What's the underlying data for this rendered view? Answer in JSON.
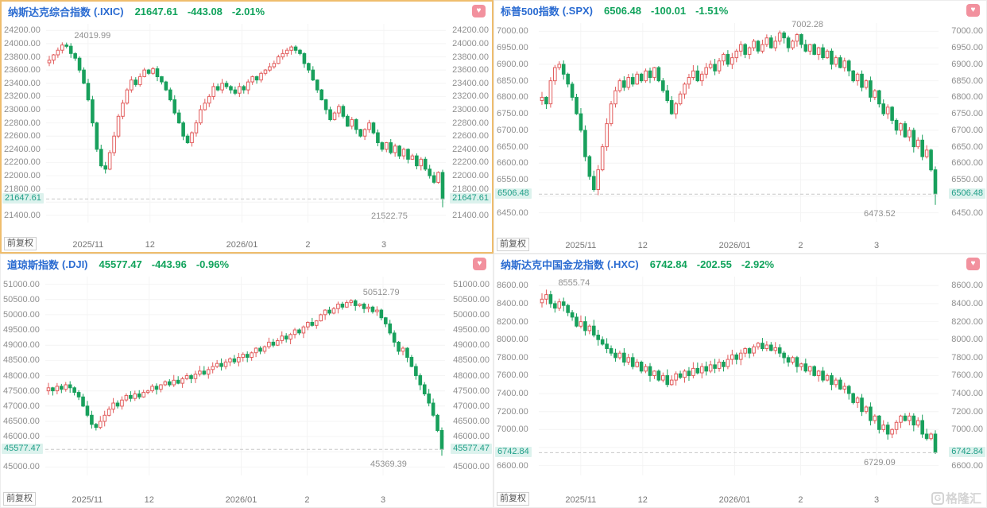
{
  "page": {
    "adjust_label": "前复权",
    "watermark_g": "G",
    "watermark_text": "格隆汇",
    "heart": "♥"
  },
  "colors": {
    "up": "#e25c5c",
    "down": "#18a05c",
    "name_blue": "#2a6bd1",
    "value_green": "#11a35c",
    "current_bg": "#dcf2ed",
    "current_text": "#1f9e87",
    "active_border": "#efbd6d",
    "grid": "#f4f4f4",
    "dashed": "#c8c8c8",
    "favorite": "#f2919e"
  },
  "chart_data": [
    {
      "type": "candlestick",
      "name": "纳斯达克综合指数",
      "code": "(.IXIC)",
      "last": "21647.61",
      "change": "-443.08",
      "change_pct": "-2.01%",
      "current": 21647.61,
      "high_annotation": 24019.99,
      "low_annotation": 21522.75,
      "y_ticks": [
        24200,
        24000,
        23800,
        23600,
        23400,
        23200,
        23000,
        22800,
        22600,
        22400,
        22200,
        22000,
        21800,
        21600,
        21400
      ],
      "x_labels": [
        "2025/11",
        "12",
        "2026/01",
        "2",
        "3"
      ],
      "closes": [
        23750,
        23830,
        23900,
        23980,
        23960,
        23850,
        23780,
        23600,
        23400,
        23150,
        22800,
        22400,
        22150,
        22100,
        22350,
        22600,
        22900,
        23100,
        23300,
        23450,
        23380,
        23500,
        23600,
        23550,
        23620,
        23500,
        23420,
        23300,
        23150,
        22950,
        22800,
        22600,
        22500,
        22650,
        22800,
        23000,
        23100,
        23200,
        23350,
        23300,
        23400,
        23350,
        23300,
        23250,
        23350,
        23300,
        23420,
        23500,
        23450,
        23550,
        23600,
        23650,
        23700,
        23800,
        23850,
        23900,
        23950,
        23900,
        23850,
        23700,
        23600,
        23450,
        23300,
        23150,
        23000,
        22850,
        22950,
        23050,
        22900,
        22750,
        22850,
        22700,
        22600,
        22700,
        22800,
        22650,
        22500,
        22400,
        22500,
        22350,
        22450,
        22300,
        22400,
        22250,
        22300,
        22150,
        22250,
        22100,
        22000,
        21900,
        22050,
        21647.61
      ]
    },
    {
      "type": "candlestick",
      "name": "标普500指数",
      "code": "(.SPX)",
      "last": "6506.48",
      "change": "-100.01",
      "change_pct": "-1.51%",
      "current": 6506.48,
      "high_annotation": 7002.28,
      "low_annotation": 6473.52,
      "y_ticks": [
        7000,
        6950,
        6900,
        6850,
        6800,
        6750,
        6700,
        6650,
        6600,
        6550,
        6500,
        6450
      ],
      "x_labels": [
        "2025/11",
        "12",
        "2026/01",
        "2",
        "3"
      ],
      "closes": [
        6800,
        6780,
        6850,
        6890,
        6900,
        6870,
        6840,
        6800,
        6750,
        6700,
        6620,
        6560,
        6520,
        6580,
        6650,
        6720,
        6780,
        6820,
        6850,
        6830,
        6860,
        6840,
        6870,
        6850,
        6880,
        6860,
        6890,
        6850,
        6820,
        6790,
        6750,
        6780,
        6810,
        6840,
        6860,
        6880,
        6850,
        6870,
        6890,
        6900,
        6880,
        6910,
        6930,
        6900,
        6920,
        6940,
        6960,
        6930,
        6950,
        6970,
        6940,
        6960,
        6980,
        6950,
        6970,
        6995,
        6980,
        6950,
        6970,
        6990,
        6960,
        6940,
        6960,
        6930,
        6950,
        6920,
        6940,
        6900,
        6920,
        6890,
        6910,
        6880,
        6850,
        6870,
        6830,
        6850,
        6800,
        6820,
        6780,
        6750,
        6770,
        6730,
        6700,
        6720,
        6680,
        6700,
        6650,
        6670,
        6620,
        6640,
        6580,
        6506.48
      ]
    },
    {
      "type": "candlestick",
      "name": "道琼斯指数",
      "code": "(.DJI)",
      "last": "45577.47",
      "change": "-443.96",
      "change_pct": "-0.96%",
      "current": 45577.47,
      "high_annotation": 50512.79,
      "low_annotation": 45369.39,
      "y_ticks": [
        51000,
        50500,
        50000,
        49500,
        49000,
        48500,
        48000,
        47500,
        47000,
        46500,
        46000,
        45500,
        45000
      ],
      "x_labels": [
        "2025/11",
        "12",
        "2026/01",
        "2",
        "3"
      ],
      "closes": [
        47600,
        47500,
        47650,
        47550,
        47700,
        47600,
        47450,
        47300,
        47000,
        46700,
        46400,
        46300,
        46500,
        46700,
        46900,
        47100,
        47000,
        47200,
        47350,
        47250,
        47400,
        47300,
        47450,
        47500,
        47650,
        47550,
        47700,
        47800,
        47700,
        47850,
        47750,
        47900,
        48000,
        47900,
        48050,
        48150,
        48050,
        48200,
        48300,
        48400,
        48300,
        48450,
        48550,
        48450,
        48600,
        48700,
        48600,
        48750,
        48900,
        48800,
        48950,
        49100,
        49000,
        49150,
        49300,
        49200,
        49350,
        49500,
        49400,
        49600,
        49750,
        49650,
        49800,
        50000,
        50150,
        50050,
        50200,
        50350,
        50250,
        50400,
        50460,
        50300,
        50350,
        50200,
        50250,
        50100,
        50150,
        49900,
        49700,
        49400,
        49100,
        48800,
        48900,
        48600,
        48300,
        48000,
        47700,
        47400,
        47100,
        46700,
        46200,
        45577.47
      ]
    },
    {
      "type": "candlestick",
      "name": "纳斯达克中国金龙指数",
      "code": "(.HXC)",
      "last": "6742.84",
      "change": "-202.55",
      "change_pct": "-2.92%",
      "current": 6742.84,
      "high_annotation": 8555.74,
      "low_annotation": 6729.09,
      "y_ticks": [
        8600,
        8400,
        8200,
        8000,
        7800,
        7600,
        7400,
        7200,
        7000,
        6800,
        6600
      ],
      "x_labels": [
        "2025/11",
        "12",
        "2026/01",
        "2",
        "3"
      ],
      "closes": [
        8450,
        8500,
        8400,
        8350,
        8420,
        8380,
        8300,
        8250,
        8150,
        8200,
        8100,
        8150,
        8050,
        8000,
        7950,
        7900,
        7850,
        7800,
        7850,
        7750,
        7800,
        7700,
        7750,
        7650,
        7700,
        7600,
        7650,
        7550,
        7600,
        7500,
        7550,
        7620,
        7580,
        7650,
        7600,
        7680,
        7630,
        7700,
        7650,
        7720,
        7680,
        7750,
        7700,
        7780,
        7830,
        7780,
        7850,
        7900,
        7850,
        7920,
        7960,
        7900,
        7940,
        7880,
        7910,
        7850,
        7800,
        7750,
        7800,
        7700,
        7730,
        7650,
        7700,
        7600,
        7650,
        7550,
        7600,
        7500,
        7550,
        7450,
        7480,
        7400,
        7300,
        7350,
        7200,
        7250,
        7100,
        7150,
        7000,
        7050,
        6950,
        7000,
        7080,
        7150,
        7100,
        7150,
        7050,
        7100,
        6950,
        6900,
        6950,
        6742.84
      ]
    }
  ]
}
